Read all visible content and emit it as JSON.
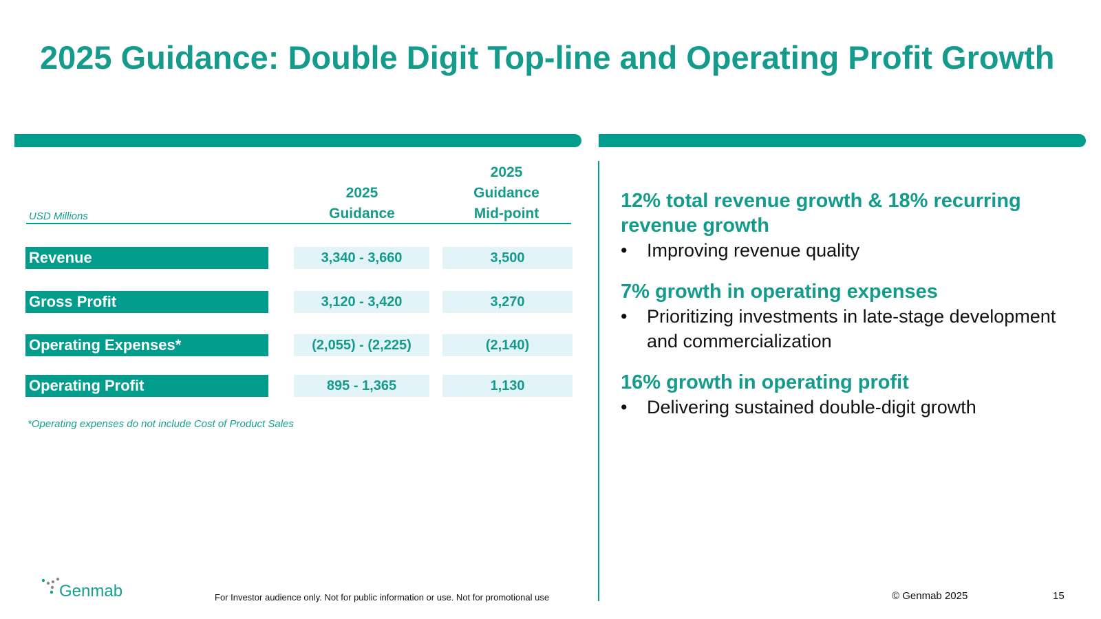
{
  "slide": {
    "title": "2025 Guidance: Double Digit Top-line and Operating Profit Growth",
    "page_number": "15",
    "copyright": "© Genmab 2025",
    "disclaimer": "For Investor audience only. Not for public information or use. Not for promotional use",
    "logo_text": "Genmab"
  },
  "table": {
    "unit_label": "USD Millions",
    "headers": {
      "guidance_line1": "2025",
      "guidance_line2": "Guidance",
      "midpoint_line1": "2025",
      "midpoint_line2": "Guidance",
      "midpoint_line3": "Mid-point"
    },
    "rows": [
      {
        "label": "Revenue",
        "guidance": "3,340 - 3,660",
        "midpoint": "3,500"
      },
      {
        "label": "Gross Profit",
        "guidance": "3,120 - 3,420",
        "midpoint": "3,270"
      },
      {
        "label": "Operating Expenses*",
        "guidance": "(2,055) - (2,225)",
        "midpoint": "(2,140)"
      },
      {
        "label": "Operating Profit",
        "guidance": "895 - 1,365",
        "midpoint": "1,130"
      }
    ],
    "footnote": "*Operating expenses do not include Cost of Product Sales"
  },
  "highlights": [
    {
      "heading": "12% total revenue growth & 18% recurring revenue growth",
      "bullet": "Improving revenue quality"
    },
    {
      "heading": "7% growth in operating expenses",
      "bullet": "Prioritizing investments in late-stage development and commercialization"
    },
    {
      "heading": "16% growth in operating profit",
      "bullet": "Delivering sustained double-digit growth"
    }
  ],
  "bullet_symbol": "•",
  "colors": {
    "accent": "#009c8c",
    "accent_text": "#149b8c",
    "cell_bg": "#e2f4f8"
  }
}
